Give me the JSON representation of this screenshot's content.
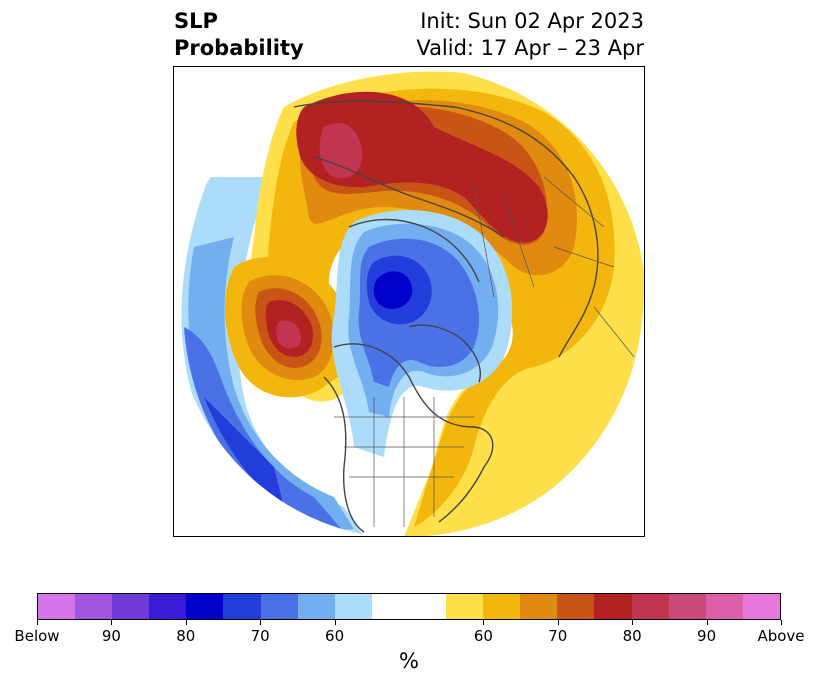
{
  "title": {
    "left_line1": "SLP",
    "left_line2": "Probability",
    "right_line1": "Init: Sun 02 Apr 2023",
    "right_line2": "Valid: 17 Apr – 23 Apr"
  },
  "colorbar": {
    "units": "%",
    "segments": [
      {
        "color": "#d474e8"
      },
      {
        "color": "#a056e0"
      },
      {
        "color": "#6e3ad8"
      },
      {
        "color": "#3a1ad4"
      },
      {
        "color": "#0000cd"
      },
      {
        "color": "#233ddc"
      },
      {
        "color": "#4a72e6"
      },
      {
        "color": "#73aef0"
      },
      {
        "color": "#acdcfa"
      },
      {
        "color": "#ffffff"
      },
      {
        "color": "#ffffff"
      },
      {
        "color": "#ffe04a"
      },
      {
        "color": "#f2b60c"
      },
      {
        "color": "#e08a10"
      },
      {
        "color": "#c85416"
      },
      {
        "color": "#b22222"
      },
      {
        "color": "#c23550"
      },
      {
        "color": "#cc4a7a"
      },
      {
        "color": "#dc5fa8"
      },
      {
        "color": "#e878dc"
      }
    ],
    "tick_labels": [
      {
        "text": "Below",
        "index": 0
      },
      {
        "text": "90",
        "index": 2
      },
      {
        "text": "80",
        "index": 4
      },
      {
        "text": "70",
        "index": 6
      },
      {
        "text": "60",
        "index": 8
      },
      {
        "text": "60",
        "index": 12
      },
      {
        "text": "70",
        "index": 14
      },
      {
        "text": "80",
        "index": 16
      },
      {
        "text": "90",
        "index": 18
      },
      {
        "text": "Above",
        "index": 20
      }
    ]
  }
}
